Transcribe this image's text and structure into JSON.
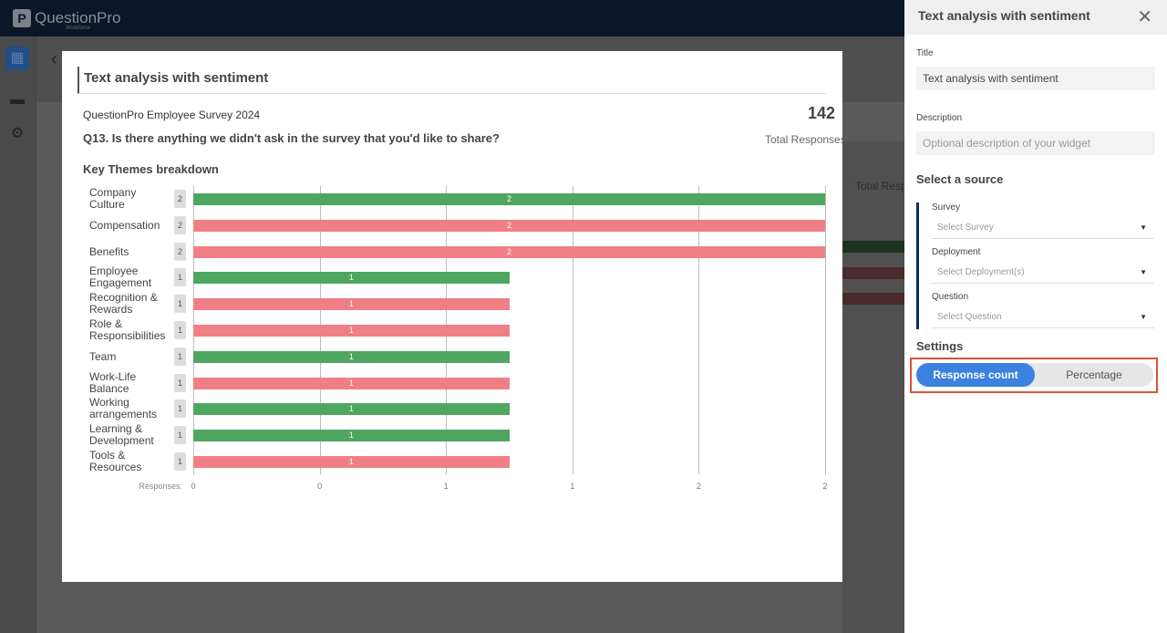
{
  "app": {
    "logo_text": "QuestionPro",
    "logo_sub": "Workforce"
  },
  "sidebar": {
    "items": [
      {
        "icon": "dashboard-icon",
        "active": true
      },
      {
        "icon": "folder-icon"
      },
      {
        "icon": "gear-icon"
      }
    ]
  },
  "background": {
    "total_label": "Total Resp"
  },
  "widget": {
    "title": "Text analysis with sentiment",
    "survey_name": "QuestionPro Employee Survey 2024",
    "question": "Q13. Is there anything we didn't ask in the survey that you'd like to share?",
    "total_count": "142",
    "total_label": "Total Responses",
    "section_title": "Key Themes breakdown",
    "axis_prefix": "Responses:"
  },
  "chart_data": {
    "type": "bar",
    "orientation": "horizontal",
    "categories": [
      "Company Culture",
      "Compensation",
      "Benefits",
      "Employee Engagement",
      "Recognition & Rewards",
      "Role & Responsibilities",
      "Team",
      "Work-Life Balance",
      "Working arrangements",
      "Learning & Development",
      "Tools & Resources"
    ],
    "values": [
      2,
      2,
      2,
      1,
      1,
      1,
      1,
      1,
      1,
      1,
      1
    ],
    "sentiment": [
      "positive",
      "negative",
      "negative",
      "positive",
      "negative",
      "negative",
      "positive",
      "negative",
      "positive",
      "positive",
      "negative"
    ],
    "colors": {
      "positive": "#4fa661",
      "negative": "#f07f85"
    },
    "xlim": [
      0,
      2
    ],
    "tick_labels": [
      "0",
      "0",
      "1",
      "1",
      "2",
      "2"
    ],
    "xlabel": "Responses:",
    "grid": true
  },
  "panel": {
    "header": "Text analysis with sentiment",
    "title_label": "Title",
    "title_value": "Text analysis with sentiment",
    "description_label": "Description",
    "description_placeholder": "Optional description of your widget",
    "source_heading": "Select a source",
    "survey_label": "Survey",
    "survey_placeholder": "Select Survey",
    "deployment_label": "Deployment",
    "deployment_placeholder": "Select Deployment(s)",
    "question_label": "Question",
    "question_placeholder": "Select Question",
    "settings_heading": "Settings",
    "toggle": {
      "options": [
        "Response count",
        "Percentage"
      ],
      "selected": "Response count"
    }
  }
}
